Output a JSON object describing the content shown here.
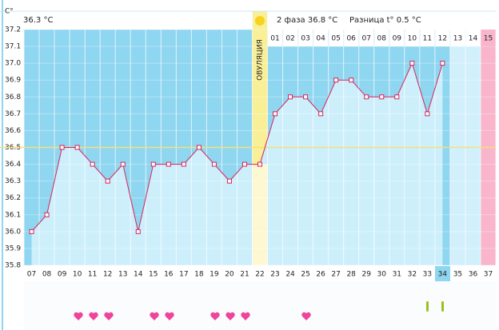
{
  "chart_data": {
    "type": "line",
    "y_label": "C°",
    "phase1_text": "36.3 °C",
    "phase2_text": "2 фаза 36.8 °C",
    "diff_text": "Разница t° 0.5 °C",
    "ovulation_label": "ОВУЛЯЦИЯ",
    "categories": [
      "07",
      "08",
      "09",
      "10",
      "11",
      "12",
      "13",
      "14",
      "15",
      "16",
      "17",
      "18",
      "19",
      "20",
      "21",
      "22",
      "23",
      "24",
      "25",
      "26",
      "27",
      "28",
      "29",
      "30",
      "31",
      "32",
      "33",
      "34",
      "35",
      "36",
      "37"
    ],
    "phase2_days": [
      "01",
      "02",
      "03",
      "04",
      "05",
      "06",
      "07",
      "08",
      "09",
      "10",
      "11",
      "12",
      "13",
      "14",
      "15"
    ],
    "values": [
      36.0,
      36.1,
      36.5,
      36.5,
      36.4,
      36.3,
      36.4,
      36.0,
      36.4,
      36.4,
      36.4,
      36.5,
      36.4,
      36.3,
      36.4,
      36.4,
      36.7,
      36.8,
      36.8,
      36.7,
      36.9,
      36.9,
      36.8,
      36.8,
      36.8,
      37.0,
      36.7,
      37.0,
      null,
      null,
      null
    ],
    "color": "#d6245a",
    "coverline": 36.5,
    "ylim": [
      35.8,
      37.2
    ],
    "yticks": [
      35.8,
      35.9,
      {
        "value": 36,
        "label": "36.0"
      },
      36.1,
      36.2,
      36.3,
      36.4,
      36.5,
      36.6,
      36.7,
      36.8,
      36.9,
      {
        "value": 37,
        "label": "37.0"
      },
      37.1,
      37.2
    ]
  }
}
